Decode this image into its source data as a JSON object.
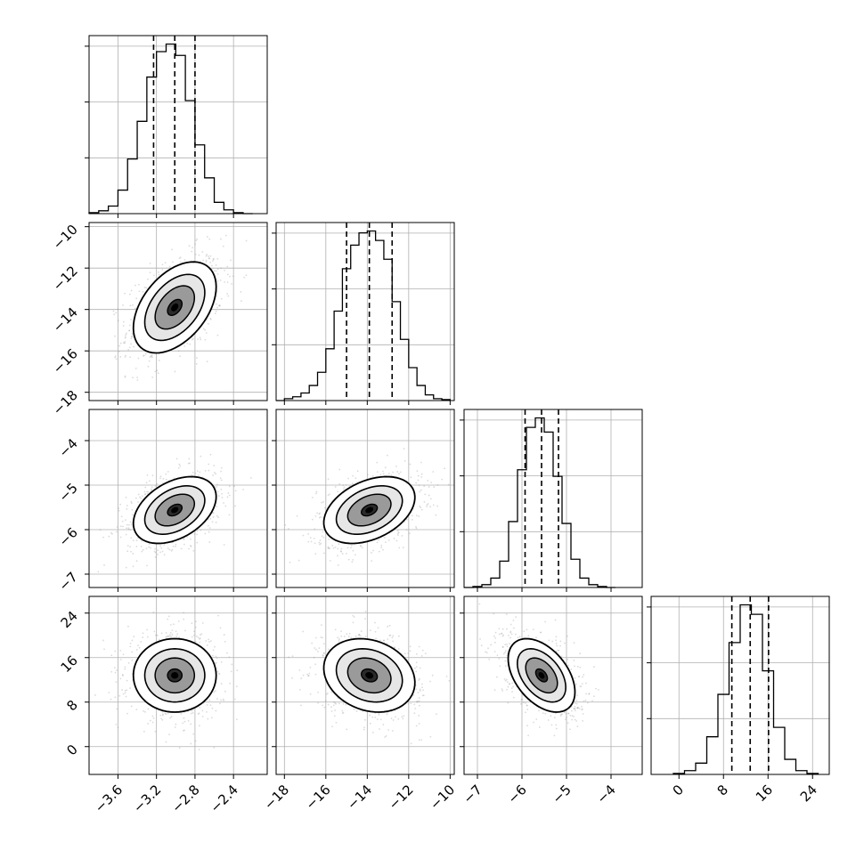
{
  "chart_data": {
    "type": "corner-plot",
    "description_type": "histogram + 2d-density grid",
    "num_params": 4,
    "colors": {
      "line": "#000000",
      "grid": "#b0b0b0",
      "points": "#999999",
      "quantile_line": "#000000"
    },
    "grid": true,
    "quantile_lines": "dashed vertical lines at the 16th, 50th and 84th percentiles",
    "parameters": [
      {
        "name": "",
        "range": [
          -3.9,
          -2.05
        ],
        "ticks": [
          -3.6,
          -3.2,
          -2.8,
          -2.4
        ],
        "tick_labels": [
          "−3.6",
          "−3.2",
          "−2.8",
          "−2.4"
        ],
        "quantiles": [
          -3.23,
          -3.01,
          -2.8
        ],
        "hist_edges": [
          -3.9,
          -3.8,
          -3.7,
          -3.6,
          -3.5,
          -3.4,
          -3.3,
          -3.2,
          -3.1,
          -3.0,
          -2.9,
          -2.8,
          -2.7,
          -2.6,
          -2.5,
          -2.4,
          -2.3,
          -2.2
        ],
        "hist_counts": [
          1,
          3,
          8,
          25,
          58,
          98,
          145,
          172,
          180,
          168,
          120,
          73,
          38,
          12,
          4,
          1,
          0
        ]
      },
      {
        "name": "",
        "range": [
          -18.4,
          -9.8
        ],
        "ticks": [
          -18,
          -16,
          -14,
          -12,
          -10
        ],
        "tick_labels": [
          "−18",
          "−16",
          "−14",
          "−12",
          "−10"
        ],
        "quantiles": [
          -15.0,
          -13.9,
          -12.8
        ],
        "hist_edges": [
          -18.4,
          -18.0,
          -17.6,
          -17.2,
          -16.8,
          -16.4,
          -16.0,
          -15.6,
          -15.2,
          -14.8,
          -14.4,
          -14.0,
          -13.6,
          -13.2,
          -12.8,
          -12.4,
          -12.0,
          -11.6,
          -11.2,
          -10.8,
          -10.4,
          -10.0
        ],
        "hist_counts": [
          0,
          2,
          4,
          8,
          16,
          30,
          55,
          95,
          140,
          165,
          178,
          180,
          170,
          150,
          105,
          65,
          35,
          16,
          6,
          2,
          1
        ]
      },
      {
        "name": "",
        "range": [
          -7.3,
          -3.3
        ],
        "ticks": [
          -7,
          -6,
          -5,
          -4
        ],
        "tick_labels": [
          "−7",
          "−6",
          "−5",
          "−4"
        ],
        "quantiles": [
          -5.93,
          -5.56,
          -5.18
        ],
        "hist_edges": [
          -7.3,
          -7.1,
          -6.9,
          -6.7,
          -6.5,
          -6.3,
          -6.1,
          -5.9,
          -5.7,
          -5.5,
          -5.3,
          -5.1,
          -4.9,
          -4.7,
          -4.5,
          -4.3,
          -4.1,
          -3.9
        ],
        "hist_counts": [
          0,
          1,
          3,
          10,
          28,
          70,
          125,
          170,
          180,
          165,
          118,
          68,
          30,
          10,
          3,
          1,
          0
        ]
      },
      {
        "name": "",
        "range": [
          -5,
          27
        ],
        "ticks": [
          0,
          8,
          16,
          24
        ],
        "tick_labels": [
          "0",
          "8",
          "16",
          "24"
        ],
        "quantiles": [
          9.5,
          12.8,
          16.1
        ],
        "hist_edges": [
          -1,
          1,
          3,
          5,
          7,
          9,
          11,
          13,
          15,
          17,
          19,
          21,
          23,
          25
        ],
        "hist_counts": [
          1,
          4,
          12,
          40,
          85,
          140,
          180,
          170,
          110,
          50,
          16,
          4,
          1
        ]
      }
    ],
    "correlations": {
      "p2_vs_p1": 0.45,
      "p3_vs_p1": 0.4,
      "p3_vs_p2": 0.38,
      "p4_vs_p1": 0.0,
      "p4_vs_p2": -0.2,
      "p4_vs_p3": -0.45
    }
  }
}
